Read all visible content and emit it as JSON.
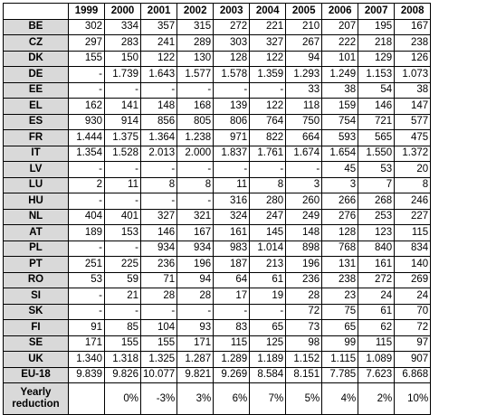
{
  "table": {
    "years": [
      "1999",
      "2000",
      "2001",
      "2002",
      "2003",
      "2004",
      "2005",
      "2006",
      "2007",
      "2008"
    ],
    "rows": [
      {
        "country": "BE",
        "values": [
          "302",
          "334",
          "357",
          "315",
          "272",
          "221",
          "210",
          "207",
          "195",
          "167"
        ]
      },
      {
        "country": "CZ",
        "values": [
          "297",
          "283",
          "241",
          "289",
          "303",
          "327",
          "267",
          "222",
          "218",
          "238"
        ]
      },
      {
        "country": "DK",
        "values": [
          "155",
          "150",
          "122",
          "130",
          "128",
          "122",
          "94",
          "101",
          "129",
          "126"
        ]
      },
      {
        "country": "DE",
        "values": [
          "-",
          "1.739",
          "1.643",
          "1.577",
          "1.578",
          "1.359",
          "1.293",
          "1.249",
          "1.153",
          "1.073"
        ]
      },
      {
        "country": "EE",
        "values": [
          "-",
          "-",
          "-",
          "-",
          "-",
          "-",
          "33",
          "38",
          "54",
          "38"
        ]
      },
      {
        "country": "EL",
        "values": [
          "162",
          "141",
          "148",
          "168",
          "139",
          "122",
          "118",
          "159",
          "146",
          "147"
        ]
      },
      {
        "country": "ES",
        "values": [
          "930",
          "914",
          "856",
          "805",
          "806",
          "764",
          "750",
          "754",
          "721",
          "577"
        ]
      },
      {
        "country": "FR",
        "values": [
          "1.444",
          "1.375",
          "1.364",
          "1.238",
          "971",
          "822",
          "664",
          "593",
          "565",
          "475"
        ]
      },
      {
        "country": "IT",
        "values": [
          "1.354",
          "1.528",
          "2.013",
          "2.000",
          "1.837",
          "1.761",
          "1.674",
          "1.654",
          "1.550",
          "1.372"
        ]
      },
      {
        "country": "LV",
        "values": [
          "-",
          "-",
          "-",
          "-",
          "-",
          "-",
          "-",
          "45",
          "53",
          "20"
        ]
      },
      {
        "country": "LU",
        "values": [
          "2",
          "11",
          "8",
          "8",
          "11",
          "8",
          "3",
          "3",
          "7",
          "8"
        ]
      },
      {
        "country": "HU",
        "values": [
          "-",
          "-",
          "-",
          "-",
          "316",
          "280",
          "260",
          "266",
          "268",
          "246"
        ]
      },
      {
        "country": "NL",
        "values": [
          "404",
          "401",
          "327",
          "321",
          "324",
          "247",
          "249",
          "276",
          "253",
          "227"
        ]
      },
      {
        "country": "AT",
        "values": [
          "189",
          "153",
          "146",
          "167",
          "161",
          "145",
          "148",
          "128",
          "123",
          "115"
        ]
      },
      {
        "country": "PL",
        "values": [
          "-",
          "-",
          "934",
          "934",
          "983",
          "1.014",
          "898",
          "768",
          "840",
          "834"
        ]
      },
      {
        "country": "PT",
        "values": [
          "251",
          "225",
          "236",
          "196",
          "187",
          "213",
          "196",
          "131",
          "161",
          "140"
        ]
      },
      {
        "country": "RO",
        "values": [
          "53",
          "59",
          "71",
          "94",
          "64",
          "61",
          "236",
          "238",
          "272",
          "269"
        ]
      },
      {
        "country": "SI",
        "values": [
          "-",
          "21",
          "28",
          "28",
          "17",
          "19",
          "28",
          "23",
          "24",
          "24"
        ]
      },
      {
        "country": "SK",
        "values": [
          "-",
          "-",
          "-",
          "-",
          "-",
          "-",
          "72",
          "75",
          "61",
          "70"
        ]
      },
      {
        "country": "FI",
        "values": [
          "91",
          "85",
          "104",
          "93",
          "83",
          "65",
          "73",
          "65",
          "62",
          "72"
        ]
      },
      {
        "country": "SE",
        "values": [
          "171",
          "155",
          "155",
          "171",
          "115",
          "125",
          "98",
          "99",
          "115",
          "97"
        ]
      },
      {
        "country": "UK",
        "values": [
          "1.340",
          "1.318",
          "1.325",
          "1.287",
          "1.289",
          "1.189",
          "1.152",
          "1.115",
          "1.089",
          "907"
        ]
      }
    ],
    "total": {
      "country": "EU-18",
      "values": [
        "9.839",
        "9.826",
        "10.077",
        "9.821",
        "9.269",
        "8.584",
        "8.151",
        "7.785",
        "7.623",
        "6.868"
      ]
    },
    "yearly": {
      "label": "Yearly reduction",
      "values": [
        "",
        "0%",
        "-3%",
        "3%",
        "6%",
        "7%",
        "5%",
        "4%",
        "2%",
        "10%"
      ]
    }
  }
}
